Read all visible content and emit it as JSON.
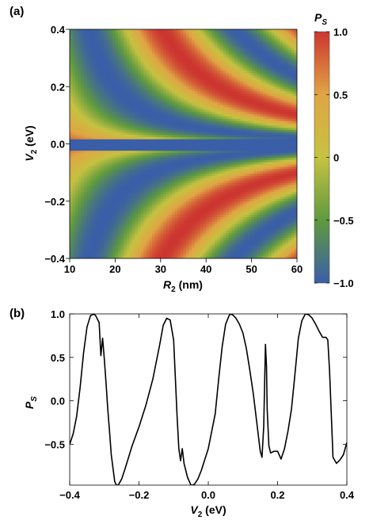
{
  "chart_data": [
    {
      "type": "heatmap",
      "panel_label": "(a)",
      "xlabel": "R",
      "xlabel_sub": "2",
      "xlabel_unit": " (nm)",
      "ylabel": "V",
      "ylabel_sub": "2",
      "ylabel_unit": " (eV)",
      "xlim": [
        10,
        60
      ],
      "ylim": [
        -0.4,
        0.4
      ],
      "x_ticks": [
        "10",
        "20",
        "30",
        "40",
        "50",
        "60"
      ],
      "y_ticks": [
        "−0.4",
        "−0.2",
        "0.0",
        "0.2",
        "0.4"
      ],
      "colorbar_title": "P",
      "colorbar_title_sub": "S",
      "colorbar_range": [
        -1.0,
        1.0
      ],
      "colorbar_ticks": [
        "1.0",
        "0.5",
        "0",
        "−0.5",
        "−1.0"
      ],
      "colors": {
        "low": "#3a5ea8",
        "mid_low": "#5f9a3f",
        "mid": "#c6c240",
        "mid_high": "#e0a544",
        "high": "#cc3530"
      }
    },
    {
      "type": "line",
      "panel_label": "(b)",
      "xlabel": "V",
      "xlabel_sub": "2",
      "xlabel_unit": " (eV)",
      "ylabel": "P",
      "ylabel_sub": "S",
      "xlim": [
        -0.4,
        0.4
      ],
      "ylim": [
        -0.97,
        1.0
      ],
      "x_ticks": [
        "−0.4",
        "−0.2",
        "0.0",
        "0.2",
        "0.4"
      ],
      "y_ticks": [
        "1.0",
        "0.5",
        "0.0",
        "−0.5"
      ],
      "series": [
        {
          "color": "#000000",
          "x": [
            -0.4,
            -0.39,
            -0.38,
            -0.37,
            -0.36,
            -0.35,
            -0.34,
            -0.33,
            -0.325,
            -0.315,
            -0.31,
            -0.305,
            -0.3,
            -0.295,
            -0.29,
            -0.285,
            -0.28,
            -0.27,
            -0.265,
            -0.26,
            -0.25,
            -0.24,
            -0.23,
            -0.22,
            -0.2,
            -0.18,
            -0.16,
            -0.14,
            -0.13,
            -0.12,
            -0.11,
            -0.1,
            -0.09,
            -0.085,
            -0.08,
            -0.075,
            -0.07,
            -0.06,
            -0.05,
            -0.045,
            -0.04,
            -0.03,
            -0.02,
            0.0,
            0.02,
            0.03,
            0.04,
            0.05,
            0.06,
            0.065,
            0.07,
            0.08,
            0.09,
            0.1,
            0.11,
            0.12,
            0.13,
            0.14,
            0.15,
            0.155,
            0.16,
            0.165,
            0.168,
            0.17,
            0.175,
            0.18,
            0.19,
            0.2,
            0.21,
            0.22,
            0.23,
            0.24,
            0.25,
            0.26,
            0.27,
            0.28,
            0.29,
            0.3,
            0.31,
            0.32,
            0.33,
            0.34,
            0.345,
            0.35,
            0.36,
            0.37,
            0.38,
            0.39,
            0.4
          ],
          "y": [
            -0.5,
            -0.38,
            -0.18,
            0.15,
            0.55,
            0.85,
            0.98,
            1.0,
            0.98,
            0.9,
            0.52,
            0.72,
            0.48,
            0.2,
            -0.1,
            -0.35,
            -0.62,
            -0.93,
            -0.97,
            -0.97,
            -0.9,
            -0.78,
            -0.65,
            -0.52,
            -0.3,
            -0.05,
            0.25,
            0.65,
            0.87,
            0.95,
            0.93,
            0.7,
            -0.18,
            -0.55,
            -0.69,
            -0.55,
            -0.72,
            -0.88,
            -0.97,
            -0.97,
            -0.96,
            -0.9,
            -0.8,
            -0.55,
            -0.15,
            0.25,
            0.62,
            0.88,
            0.98,
            1.0,
            0.99,
            0.95,
            0.88,
            0.78,
            0.6,
            0.35,
            0.08,
            -0.25,
            -0.58,
            -0.65,
            -0.3,
            0.65,
            0.4,
            -0.1,
            -0.52,
            -0.6,
            -0.58,
            -0.58,
            -0.67,
            -0.55,
            -0.35,
            -0.1,
            0.3,
            0.72,
            0.92,
            1.0,
            0.99,
            0.95,
            0.88,
            0.8,
            0.73,
            0.73,
            0.7,
            0.35,
            -0.65,
            -0.72,
            -0.68,
            -0.62,
            -0.48
          ]
        }
      ]
    }
  ]
}
